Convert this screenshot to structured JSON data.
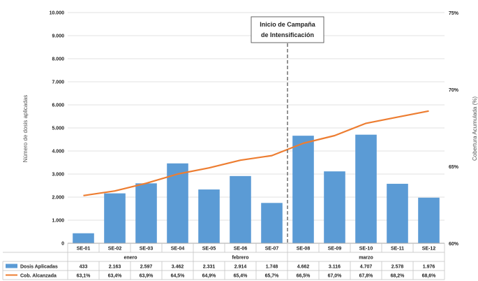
{
  "chart_data": {
    "type": "bar+line",
    "categories": [
      "SE-01",
      "SE-02",
      "SE-03",
      "SE-04",
      "SE-05",
      "SE-06",
      "SE-07",
      "SE-08",
      "SE-09",
      "SE-10",
      "SE-11",
      "SE-12"
    ],
    "months": [
      {
        "label": "enero",
        "span": [
          0,
          3
        ]
      },
      {
        "label": "febrero",
        "span": [
          4,
          6
        ]
      },
      {
        "label": "marzo",
        "span": [
          7,
          11
        ]
      }
    ],
    "series": [
      {
        "name": "Dosis Aplicadas",
        "type": "bar",
        "axis": "left",
        "color": "#5b9bd5",
        "values": [
          433,
          2163,
          2597,
          3462,
          2331,
          2914,
          1748,
          4662,
          3116,
          4707,
          2578,
          1976
        ],
        "labels": [
          "433",
          "2.163",
          "2.597",
          "3.462",
          "2.331",
          "2.914",
          "1.748",
          "4.662",
          "3.116",
          "4.707",
          "2.578",
          "1.976"
        ]
      },
      {
        "name": "Cob. Alcanzada",
        "type": "line",
        "axis": "right",
        "color": "#ed7d31",
        "values": [
          63.1,
          63.4,
          63.9,
          64.5,
          64.9,
          65.4,
          65.7,
          66.5,
          67.0,
          67.8,
          68.2,
          68.6
        ],
        "labels": [
          "63,1%",
          "63,4%",
          "63,9%",
          "64,5%",
          "64,9%",
          "65,4%",
          "65,7%",
          "66,5%",
          "67,0%",
          "67,8%",
          "68,2%",
          "68,6%"
        ]
      }
    ],
    "ylabel": "Número de dosis aplicadas",
    "y2label": "Cobertura Acumulada (%)",
    "ylim": [
      0,
      10000
    ],
    "y_ticks": [
      "0",
      "1.000",
      "2.000",
      "3.000",
      "4.000",
      "5.000",
      "6.000",
      "7.000",
      "8.000",
      "9.000",
      "10.000"
    ],
    "y2lim": [
      60,
      75
    ],
    "y2_ticks": [
      "60%",
      "65%",
      "70%",
      "75%"
    ],
    "annotation": {
      "line1": "Inicio de Campaña",
      "line2": "de Intensificación",
      "after_category": "SE-07"
    },
    "grid": true
  }
}
